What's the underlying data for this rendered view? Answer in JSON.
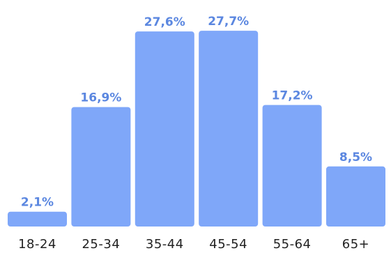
{
  "chart_data": {
    "type": "bar",
    "categories": [
      "18-24",
      "25-34",
      "35-44",
      "45-54",
      "55-64",
      "65+"
    ],
    "values": [
      2.1,
      16.9,
      27.6,
      27.7,
      17.2,
      8.5
    ],
    "value_labels": [
      "2,1%",
      "16,9%",
      "27,6%",
      "27,7%",
      "17,2%",
      "8,5%"
    ],
    "ylim": [
      0,
      28.4
    ],
    "grid": false,
    "legend": "none",
    "title": "",
    "xlabel": "",
    "ylabel": ""
  },
  "colors": {
    "bar": "#7FA7F9",
    "value_label": "#5B87E0",
    "category_label": "#222222"
  }
}
